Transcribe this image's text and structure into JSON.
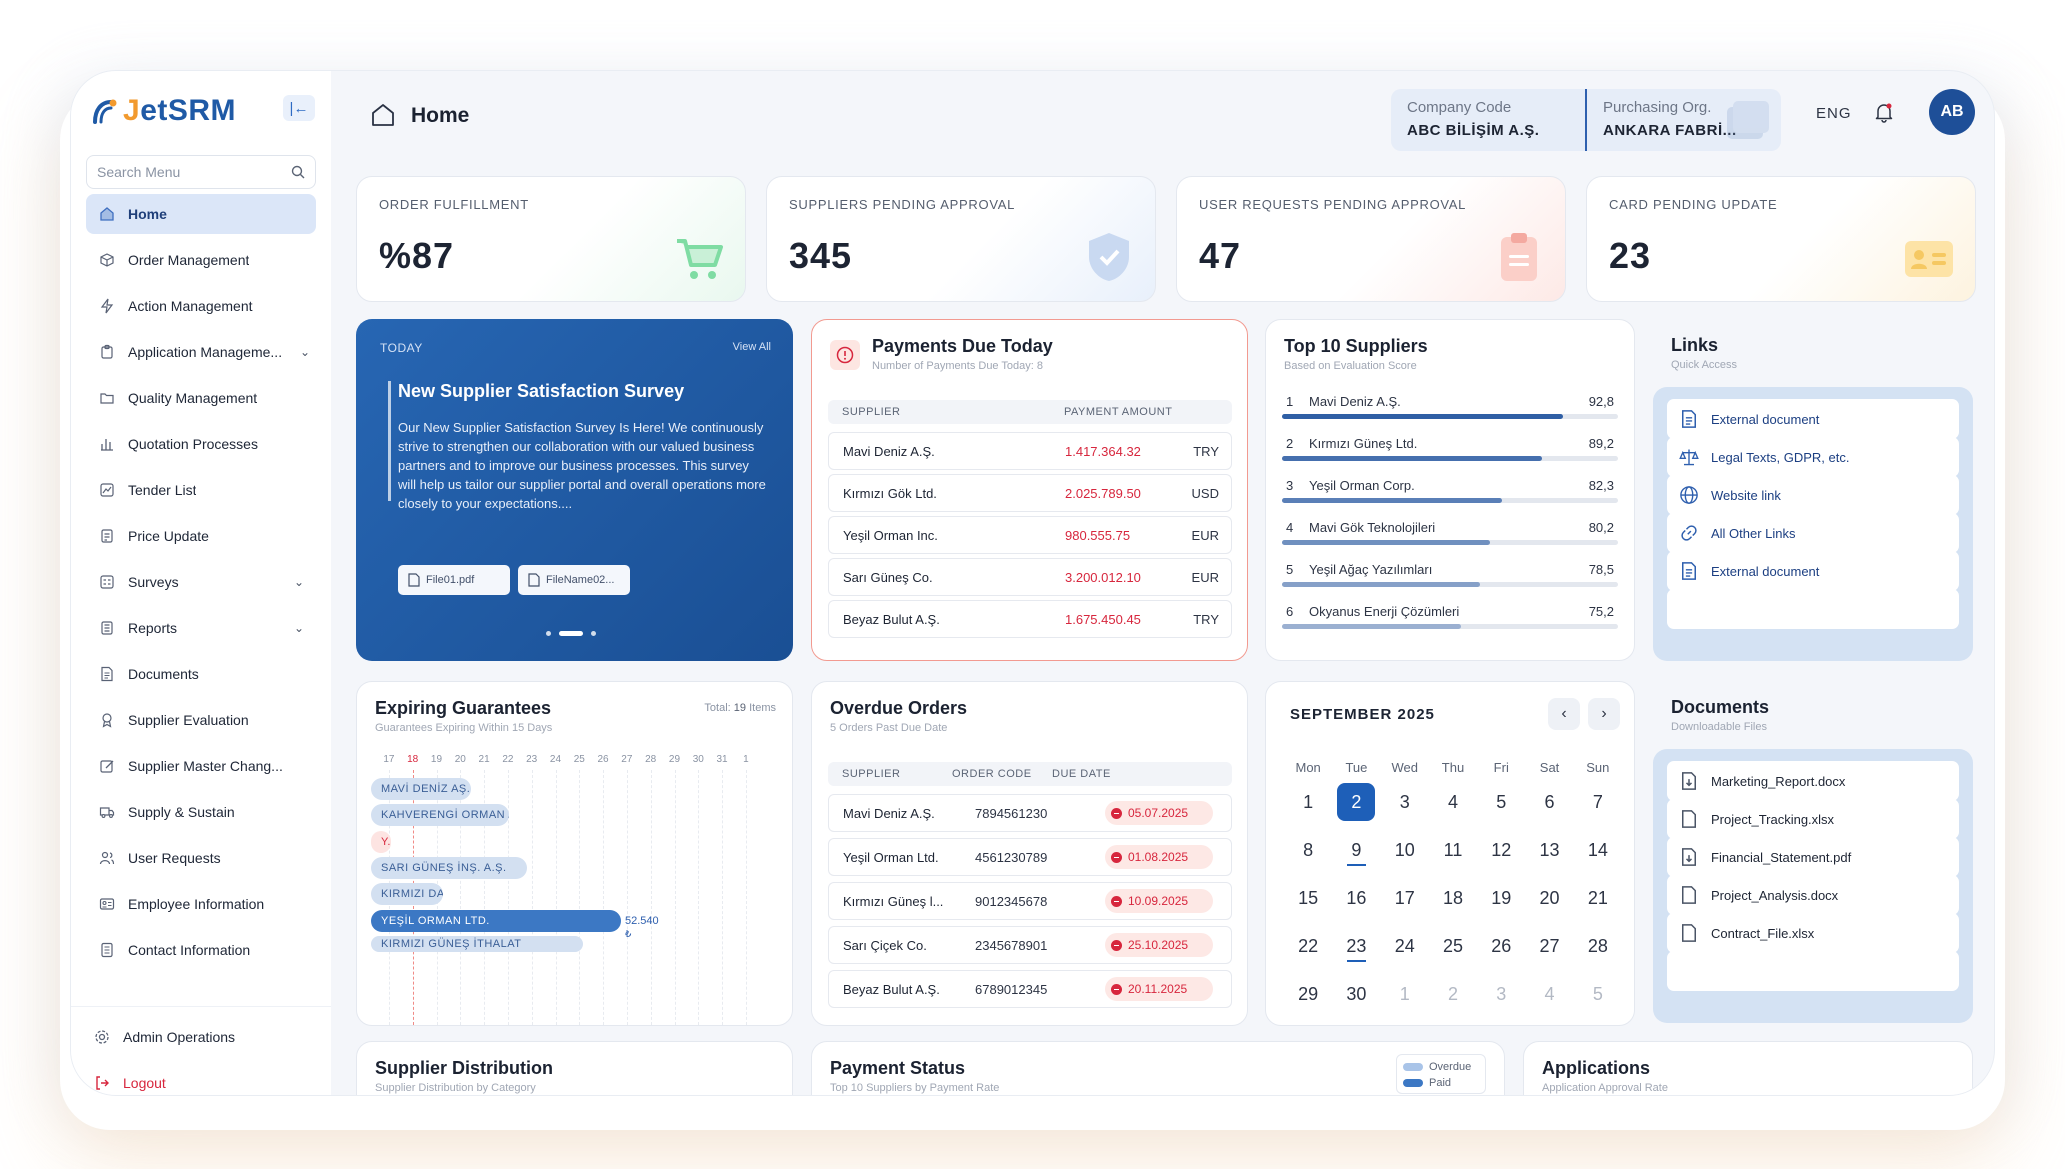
{
  "app": {
    "logo_text_accent": "J",
    "logo_text": "etSRM",
    "page_title": "Home"
  },
  "search": {
    "placeholder": "Search Menu"
  },
  "sidebar": {
    "items": [
      {
        "label": "Home",
        "icon": "home-icon"
      },
      {
        "label": "Order Management",
        "icon": "box-icon"
      },
      {
        "label": "Action Management",
        "icon": "bolt-icon"
      },
      {
        "label": "Application Manageme...",
        "icon": "clipboard-icon"
      },
      {
        "label": "Quality Management",
        "icon": "folder-icon"
      },
      {
        "label": "Quotation Processes",
        "icon": "bar-chart-icon"
      },
      {
        "label": "Tender List",
        "icon": "trend-icon"
      },
      {
        "label": "Price Update",
        "icon": "price-icon"
      },
      {
        "label": "Surveys",
        "icon": "survey-icon"
      },
      {
        "label": "Reports",
        "icon": "report-icon"
      },
      {
        "label": "Documents",
        "icon": "document-icon"
      },
      {
        "label": "Supplier Evaluation",
        "icon": "award-icon"
      },
      {
        "label": "Supplier Master Chang...",
        "icon": "edit-icon"
      },
      {
        "label": "Supply & Sustain",
        "icon": "truck-icon"
      },
      {
        "label": "User Requests",
        "icon": "users-icon"
      },
      {
        "label": "Employee Information",
        "icon": "id-card-icon"
      },
      {
        "label": "Contact Information",
        "icon": "contact-icon"
      }
    ],
    "admin_label": "Admin Operations",
    "logout_label": "Logout"
  },
  "topbar": {
    "company_code_label": "Company Code",
    "company_code_value": "ABC BİLİŞİM A.Ş.",
    "purchasing_org_label": "Purchasing Org.",
    "purchasing_org_value": "ANKARA FABRİ...",
    "language": "ENG",
    "avatar_initials": "AB"
  },
  "kpis": [
    {
      "label": "ORDER FULFILLMENT",
      "value": "%87",
      "icon": "cart-icon",
      "color": "#5ccf8a"
    },
    {
      "label": "SUPPLIERS PENDING APPROVAL",
      "value": "345",
      "icon": "shield-check-icon",
      "color": "#8fb2e6"
    },
    {
      "label": "USER REQUESTS PENDING APPROVAL",
      "value": "47",
      "icon": "clipboard-icon",
      "color": "#f4a9a0"
    },
    {
      "label": "CARD PENDING UPDATE",
      "value": "23",
      "icon": "contact-card-icon",
      "color": "#f5c862"
    }
  ],
  "survey": {
    "today_label": "TODAY",
    "view_all": "View All",
    "title": "New Supplier Satisfaction Survey",
    "text": "Our New Supplier Satisfaction Survey Is Here! We continuously strive to strengthen our collaboration with our valued business partners and to improve our business processes. This survey will help us tailor our supplier portal and overall operations more closely to your expectations....",
    "files": [
      "File01.pdf",
      "FileName02..."
    ]
  },
  "payments": {
    "title": "Payments Due Today",
    "subtitle": "Number of Payments Due Today: 8",
    "col_supplier": "SUPPLIER",
    "col_amount": "PAYMENT AMOUNT",
    "rows": [
      {
        "supplier": "Mavi Deniz A.Ş.",
        "amount": "1.417.364.32",
        "currency": "TRY"
      },
      {
        "supplier": "Kırmızı Gök Ltd.",
        "amount": "2.025.789.50",
        "currency": "USD"
      },
      {
        "supplier": "Yeşil Orman Inc.",
        "amount": "980.555.75",
        "currency": "EUR"
      },
      {
        "supplier": "Sarı Güneş Co.",
        "amount": "3.200.012.10",
        "currency": "EUR"
      },
      {
        "supplier": "Beyaz Bulut A.Ş.",
        "amount": "1.675.450.45",
        "currency": "TRY"
      }
    ]
  },
  "top_suppliers": {
    "title": "Top 10 Suppliers",
    "subtitle": "Based on Evaluation Score",
    "rows": [
      {
        "rank": "1",
        "name": "Mavi Deniz A.Ş.",
        "score": "92,8",
        "fraction": 0.928
      },
      {
        "rank": "2",
        "name": "Kırmızı Güneş Ltd.",
        "score": "89,2",
        "fraction": 0.892
      },
      {
        "rank": "3",
        "name": "Yeşil Orman Corp.",
        "score": "82,3",
        "fraction": 0.823
      },
      {
        "rank": "4",
        "name": "Mavi Gök Teknolojileri",
        "score": "80,2",
        "fraction": 0.802
      },
      {
        "rank": "5",
        "name": "Yeşil Ağaç Yazılımları",
        "score": "78,5",
        "fraction": 0.785
      },
      {
        "rank": "6",
        "name": "Okyanus Enerji Çözümleri",
        "score": "75,2",
        "fraction": 0.752
      }
    ]
  },
  "links": {
    "title": "Links",
    "subtitle": "Quick Access",
    "items": [
      {
        "label": "External document",
        "icon": "document-icon"
      },
      {
        "label": "Legal Texts, GDPR, etc.",
        "icon": "scale-icon"
      },
      {
        "label": "Website link",
        "icon": "globe-icon"
      },
      {
        "label": "All Other Links",
        "icon": "link-icon"
      },
      {
        "label": "External document",
        "icon": "document-icon"
      }
    ]
  },
  "guarantees": {
    "title": "Expiring Guarantees",
    "subtitle": "Guarantees Expiring Within 15 Days",
    "total_label": "Total:",
    "total_value": "19",
    "total_unit": "Items",
    "days": [
      "17",
      "18",
      "19",
      "20",
      "21",
      "22",
      "23",
      "24",
      "25",
      "26",
      "27",
      "28",
      "29",
      "30",
      "31",
      "1"
    ],
    "bars": [
      {
        "label": "MAVİ DENİZ AŞ."
      },
      {
        "label": "KAHVERENGİ ORMAN A.Ş."
      },
      {
        "label": "Y..."
      },
      {
        "label": "SARI GÜNEŞ İNŞ. A.Ş."
      },
      {
        "label": "KIRMIZI DAĞ T..."
      },
      {
        "label": "YEŞİL ORMAN LTD.",
        "value": "52.540",
        "currency_symbol": "₺"
      },
      {
        "label": "KIRMIZI GÜNEŞ İTHALAT"
      }
    ]
  },
  "overdue": {
    "title": "Overdue Orders",
    "subtitle": "5 Orders Past Due Date",
    "col_supplier": "SUPPLIER",
    "col_code": "ORDER CODE",
    "col_due": "DUE DATE",
    "rows": [
      {
        "supplier": "Mavi Deniz A.Ş.",
        "code": "7894561230",
        "due": "05.07.2025"
      },
      {
        "supplier": "Yeşil Orman Ltd.",
        "code": "4561230789",
        "due": "01.08.2025"
      },
      {
        "supplier": "Kırmızı Güneş l...",
        "code": "9012345678",
        "due": "10.09.2025"
      },
      {
        "supplier": "Sarı Çiçek Co.",
        "code": "2345678901",
        "due": "25.10.2025"
      },
      {
        "supplier": "Beyaz Bulut A.Ş.",
        "code": "6789012345",
        "due": "20.11.2025"
      }
    ]
  },
  "calendar": {
    "month": "SEPTEMBER 2025",
    "dow": [
      "Mon",
      "Tue",
      "Wed",
      "Thu",
      "Fri",
      "Sat",
      "Sun"
    ],
    "weeks": [
      [
        "1",
        "2",
        "3",
        "4",
        "5",
        "6",
        "7"
      ],
      [
        "8",
        "9",
        "10",
        "11",
        "12",
        "13",
        "14"
      ],
      [
        "15",
        "16",
        "17",
        "18",
        "19",
        "20",
        "21"
      ],
      [
        "22",
        "23",
        "24",
        "25",
        "26",
        "27",
        "28"
      ],
      [
        "29",
        "30",
        "1",
        "2",
        "3",
        "4",
        "5"
      ]
    ],
    "selected": "2",
    "marked": [
      "9",
      "23"
    ]
  },
  "documents": {
    "title": "Documents",
    "subtitle": "Downloadable Files",
    "items": [
      {
        "label": "Marketing_Report.docx",
        "icon": "download-doc-icon"
      },
      {
        "label": "Project_Tracking.xlsx",
        "icon": "file-icon"
      },
      {
        "label": "Financial_Statement.pdf",
        "icon": "download-doc-icon"
      },
      {
        "label": "Project_Analysis.docx",
        "icon": "file-icon"
      },
      {
        "label": "Contract_File.xlsx",
        "icon": "file-icon"
      }
    ]
  },
  "bottom": {
    "distribution_title": "Supplier Distribution",
    "distribution_sub": "Supplier Distribution by Category",
    "payment_title": "Payment Status",
    "payment_sub": "Top 10 Suppliers by Payment Rate",
    "legend_overdue": "Overdue",
    "legend_paid": "Paid",
    "applications_title": "Applications",
    "applications_sub": "Application Approval Rate"
  },
  "colors": {
    "primary": "#1e5fb8",
    "danger": "#d7263d",
    "accent": "#f29a2e"
  }
}
